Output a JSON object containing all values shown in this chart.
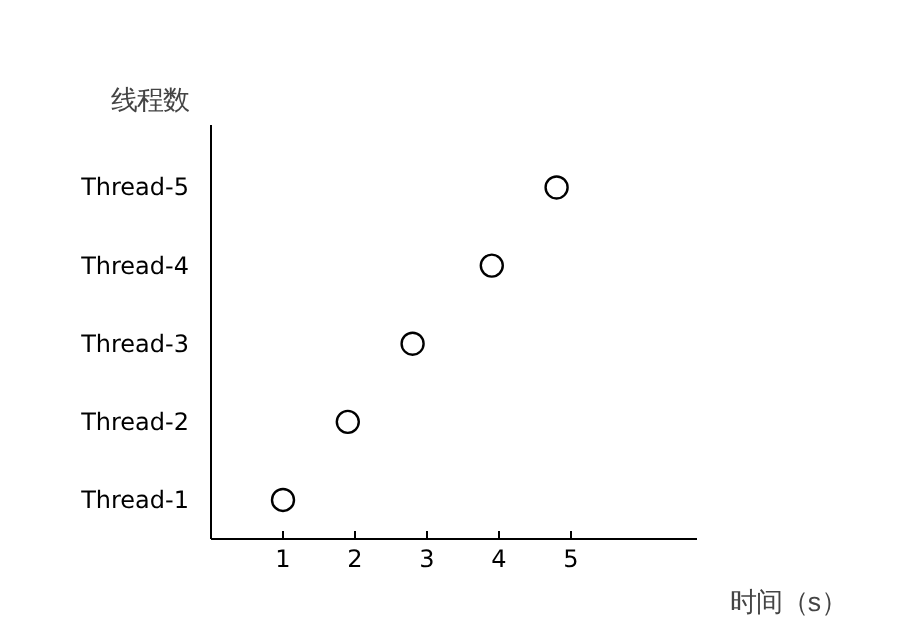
{
  "chart_data": {
    "type": "scatter",
    "orientation": "horizontal",
    "ylabel": "线程数",
    "xlabel": "时间（s）",
    "categories": [
      "Thread-5",
      "Thread-4",
      "Thread-3",
      "Thread-2",
      "Thread-1"
    ],
    "values": [
      4.8,
      3.9,
      2.8,
      1.9,
      1.0
    ],
    "color": "#000000",
    "marker": "circle",
    "xlim": [
      0,
      6.75
    ],
    "xticks": [
      1,
      2,
      3,
      4,
      5
    ],
    "grid": false
  }
}
